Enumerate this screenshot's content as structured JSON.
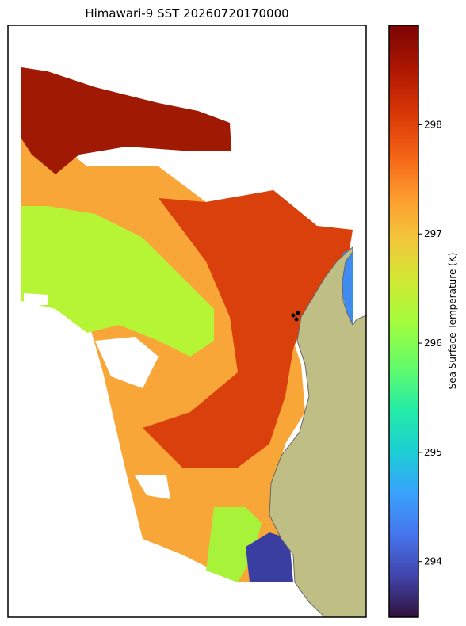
{
  "chart_data": {
    "type": "heatmap",
    "title": "Himawari-9 SST 20260720170000",
    "colorbar": {
      "label": "Sea Surface Temperature (K)",
      "lim": [
        293.49,
        298.91
      ],
      "ticks": [
        294,
        295,
        296,
        297,
        298
      ]
    }
  }
}
